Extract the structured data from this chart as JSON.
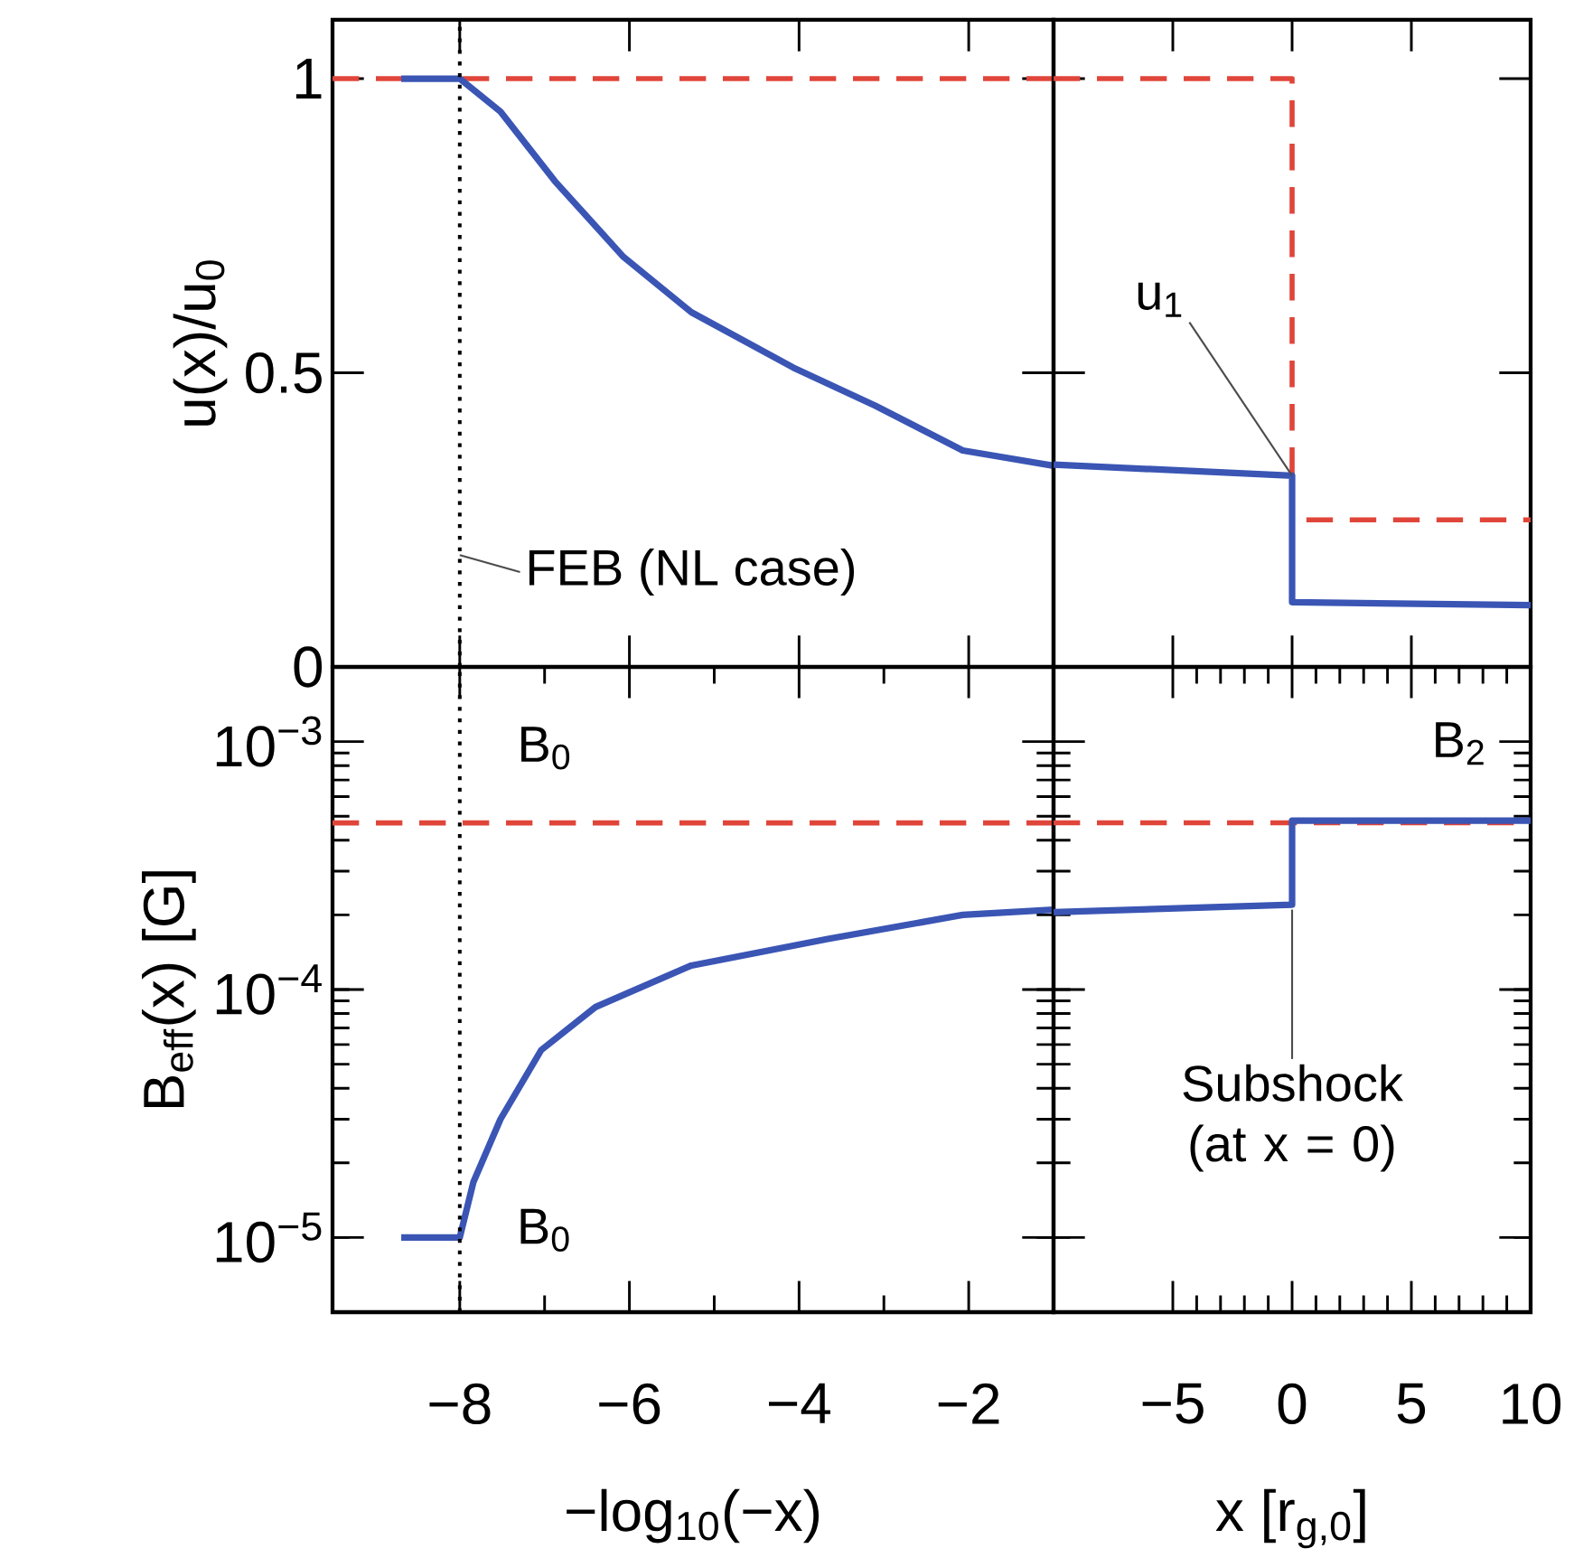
{
  "chart_data": [
    {
      "type": "line",
      "ylabel": "u(x)/u$_{0}$",
      "xlim": [
        -9.5,
        -1
      ],
      "ylim": [
        0,
        1.1
      ],
      "xticks": [
        -8,
        -6,
        -4,
        -2
      ],
      "yticks": [
        0,
        0.5,
        1
      ],
      "tick_labels": "y",
      "series": [
        {
          "color": "#e0453a",
          "line_style": "dashed",
          "x": [
            -9.5,
            -1
          ],
          "values": [
            1,
            1
          ]
        },
        {
          "color": "#3a55b4",
          "line_style": "solid",
          "x": [
            -8.69,
            -8.0,
            -7.52,
            -6.88,
            -6.07,
            -5.27,
            -4.07,
            -3.1,
            -2.07,
            -1
          ],
          "values": [
            1,
            1,
            0.944,
            0.826,
            0.697,
            0.603,
            0.509,
            0.444,
            0.368,
            0.342
          ]
        }
      ],
      "ref_lines": [
        {
          "axis": "x",
          "value": -8,
          "color": "#000000",
          "line_style": "dotted"
        }
      ],
      "annotations": [
        {
          "text": "FEB (NL case)",
          "x": -8,
          "y": 0.19
        }
      ]
    },
    {
      "type": "line",
      "xlim": [
        -10,
        10
      ],
      "ylim": [
        0,
        1.1
      ],
      "xticks": [
        -5,
        0,
        5,
        10
      ],
      "yticks": [
        0,
        0.5,
        1
      ],
      "tick_labels": false,
      "series": [
        {
          "color": "#e0453a",
          "line_style": "dashed",
          "x": [
            -10,
            0,
            0,
            10
          ],
          "values": [
            1,
            1,
            0.25,
            0.25
          ]
        },
        {
          "color": "#3a55b4",
          "line_style": "solid",
          "x": [
            -10,
            0,
            0,
            10
          ],
          "values": [
            0.344,
            0.325,
            0.11,
            0.105
          ]
        }
      ],
      "annotations": [
        {
          "text": "u$_{1}$",
          "x": 0,
          "y": 0.325
        }
      ]
    },
    {
      "type": "line",
      "ylabel": "B$_{eff}$(x) [G]",
      "xlabel": "−log$_{10}$(−x)",
      "log": true,
      "xlim": [
        -9.5,
        -1
      ],
      "ylim": [
        5e-06,
        0.002
      ],
      "xticks": [
        {
          "value": -8,
          "label": "−8"
        },
        {
          "value": -6,
          "label": "−6"
        },
        {
          "value": -4,
          "label": "−4"
        },
        {
          "value": -2,
          "label": "−2"
        }
      ],
      "yticks": [
        {
          "value": 1e-05,
          "label": "10$^{−5}$"
        },
        {
          "value": 0.0001,
          "label": "10$^{−4}$"
        },
        {
          "value": 0.001,
          "label": "10$^{−3}$"
        }
      ],
      "series": [
        {
          "color": "#e0453a",
          "line_style": "dashed",
          "x": [
            -9.5,
            -1
          ],
          "values": [
            0.00047,
            0.00047
          ]
        },
        {
          "color": "#3a55b4",
          "line_style": "solid",
          "x": [
            -8.69,
            -8.0,
            -7.84,
            -7.52,
            -7.04,
            -6.4,
            -5.27,
            -3.66,
            -2.07,
            -1
          ],
          "values": [
            1e-05,
            1e-05,
            1.67e-05,
            3e-05,
            5.7e-05,
            8.5e-05,
            0.000125,
            0.00016,
            0.0002,
            0.00021
          ]
        }
      ],
      "ref_lines": [
        {
          "axis": "x",
          "value": -8,
          "color": "#000000",
          "line_style": "dotted"
        }
      ],
      "annotations": [
        {
          "text": "B$_{0}$",
          "x": -7,
          "y": 0.00047
        },
        {
          "text": "B$_{0}$",
          "x": -8,
          "y": 1e-05
        }
      ]
    },
    {
      "type": "line",
      "xlabel": "x [r$_{g,0}$]",
      "log": true,
      "xlim": [
        -10,
        10
      ],
      "ylim": [
        5e-06,
        0.002
      ],
      "xticks": [
        {
          "value": -5,
          "label": "−5"
        },
        0,
        5,
        10
      ],
      "yticks": [
        1e-05,
        0.0001,
        0.001
      ],
      "tick_labels": "x",
      "series": [
        {
          "color": "#e0453a",
          "line_style": "dashed",
          "x": [
            -10,
            10
          ],
          "values": [
            0.00047,
            0.00047
          ]
        },
        {
          "color": "#3a55b4",
          "line_style": "solid",
          "x": [
            -10,
            0,
            0,
            10
          ],
          "values": [
            0.000205,
            0.00022,
            0.00048,
            0.00048
          ]
        }
      ],
      "annotations": [
        {
          "text": "B$_{2}$",
          "x": 7,
          "y": 0.00048
        },
        {
          "text": "Subshock (at x = 0)",
          "x": 0,
          "y": 0.00021
        }
      ]
    }
  ]
}
